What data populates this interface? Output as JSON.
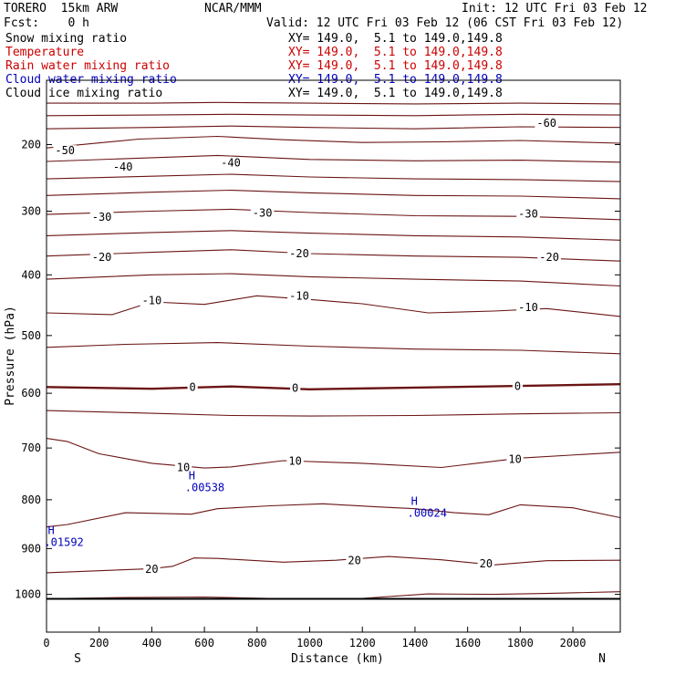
{
  "header": {
    "model": "TORERO  15km ARW",
    "org": "NCAR/MMM",
    "init": "Init: 12 UTC Fri 03 Feb 12",
    "fcst": "Fcst:    0 h",
    "valid": "Valid: 12 UTC Fri 03 Feb 12 (06 CST Fri 03 Feb 12)"
  },
  "fields": [
    {
      "name": "Snow mixing ratio",
      "xy": "XY= 149.0,  5.1 to 149.0,149.8",
      "color": "#000000"
    },
    {
      "name": "Temperature",
      "xy": "XY= 149.0,  5.1 to 149.0,149.8",
      "color": "#cc0000"
    },
    {
      "name": "Rain water mixing ratio",
      "xy": "XY= 149.0,  5.1 to 149.0,149.8",
      "color": "#cc0000"
    },
    {
      "name": "Cloud water mixing ratio",
      "xy": "XY= 149.0,  5.1 to 149.0,149.8",
      "color": "#0000bb"
    },
    {
      "name": "Cloud ice mixing ratio",
      "xy": "XY= 149.0,  5.1 to 149.0,149.8",
      "color": "#000000"
    }
  ],
  "chart_data": {
    "type": "line",
    "xlabel": "Distance (km)",
    "ylabel": "Pressure (hPa)",
    "xlim": [
      0,
      2180
    ],
    "ylim": [
      1050,
      130
    ],
    "y_scale": "pressure",
    "xticks": [
      0,
      200,
      400,
      600,
      800,
      1000,
      1200,
      1400,
      1600,
      1800,
      2000
    ],
    "yticks": [
      200,
      300,
      400,
      500,
      600,
      700,
      800,
      900,
      1000
    ],
    "left_end": "S",
    "right_end": "N",
    "contour_color": "#6b1414",
    "isotherms": [
      {
        "x": [
          0,
          400,
          650,
          1000,
          1400,
          1800,
          2180
        ],
        "p": [
          140,
          140,
          139,
          140,
          141,
          140,
          141
        ]
      },
      {
        "x": [
          0,
          400,
          700,
          1000,
          1400,
          1800,
          2180
        ],
        "p": [
          158,
          157,
          156,
          157,
          158,
          156,
          157
        ]
      },
      {
        "x": [
          0,
          400,
          700,
          1000,
          1400,
          1800,
          2180
        ],
        "p": [
          177,
          175,
          173,
          175,
          177,
          174,
          175
        ]
      },
      {
        "x": [
          0,
          350,
          650,
          900,
          1200,
          1500,
          1800,
          2180
        ],
        "p": [
          205,
          192,
          188,
          193,
          197,
          196,
          194,
          198
        ]
      },
      {
        "x": [
          0,
          350,
          650,
          1000,
          1400,
          1800,
          2180
        ],
        "p": [
          225,
          220,
          216,
          222,
          224,
          223,
          226
        ]
      },
      {
        "x": [
          0,
          400,
          700,
          1000,
          1400,
          1800,
          2180
        ],
        "p": [
          251,
          247,
          244,
          248,
          251,
          252,
          255
        ]
      },
      {
        "x": [
          0,
          400,
          700,
          1000,
          1400,
          1800,
          2180
        ],
        "p": [
          276,
          271,
          268,
          272,
          276,
          277,
          281
        ]
      },
      {
        "x": [
          0,
          400,
          700,
          1000,
          1400,
          1800,
          2180
        ],
        "p": [
          305,
          300,
          297,
          302,
          307,
          308,
          313
        ]
      },
      {
        "x": [
          0,
          400,
          700,
          1000,
          1400,
          1800,
          2180
        ],
        "p": [
          338,
          333,
          330,
          334,
          338,
          340,
          345
        ]
      },
      {
        "x": [
          0,
          400,
          700,
          1000,
          1400,
          1800,
          2180
        ],
        "p": [
          370,
          364,
          360,
          366,
          370,
          372,
          378
        ]
      },
      {
        "x": [
          0,
          400,
          700,
          1000,
          1400,
          1800,
          2180
        ],
        "p": [
          407,
          400,
          398,
          403,
          407,
          410,
          418
        ]
      },
      {
        "x": [
          0,
          250,
          400,
          600,
          800,
          1000,
          1200,
          1450,
          1700,
          1900,
          2180
        ],
        "p": [
          462,
          465,
          444,
          448,
          434,
          440,
          447,
          462,
          459,
          455,
          468
        ]
      },
      {
        "x": [
          0,
          300,
          650,
          1000,
          1400,
          1800,
          2180
        ],
        "p": [
          520,
          515,
          512,
          518,
          523,
          525,
          531
        ]
      },
      {
        "x": [
          0,
          400,
          700,
          1000,
          1400,
          1800,
          2180
        ],
        "p": [
          589,
          592,
          588,
          593,
          590,
          587,
          584
        ],
        "label": "0",
        "bold": true
      },
      {
        "x": [
          0,
          400,
          700,
          1000,
          1400,
          1800,
          2180
        ],
        "p": [
          631,
          636,
          640,
          641,
          640,
          637,
          635
        ]
      },
      {
        "x": [
          0,
          80,
          200,
          400,
          600,
          700,
          900,
          1200,
          1500,
          1800,
          2180
        ],
        "p": [
          682,
          688,
          711,
          729,
          738,
          736,
          724,
          729,
          737,
          719,
          708
        ]
      },
      {
        "x": [
          0,
          80,
          300,
          550,
          650,
          850,
          1050,
          1250,
          1400,
          1550,
          1680,
          1800,
          2000,
          2180
        ],
        "p": [
          855,
          850,
          826,
          829,
          818,
          812,
          808,
          814,
          818,
          826,
          830,
          810,
          816,
          836
        ]
      },
      {
        "x": [
          0,
          400,
          480,
          560,
          650,
          900,
          1100,
          1300,
          1500,
          1700,
          1900,
          2180
        ],
        "p": [
          952,
          943,
          938,
          920,
          921,
          929,
          925,
          917,
          924,
          935,
          926,
          925
        ]
      },
      {
        "x": [
          0,
          300,
          600,
          900,
          1200,
          1450,
          1700,
          1900,
          2180
        ],
        "p": [
          1010,
          1007,
          1006,
          1010,
          1009,
          999,
          1000,
          998,
          994
        ]
      }
    ],
    "isotherm_labels": [
      {
        "text": "-60",
        "x": 1900,
        "p": 169
      },
      {
        "text": "-50",
        "x": 70,
        "p": 209
      },
      {
        "text": "-40",
        "x": 290,
        "p": 233
      },
      {
        "text": "-40",
        "x": 700,
        "p": 227
      },
      {
        "text": "-30",
        "x": 210,
        "p": 309
      },
      {
        "text": "-30",
        "x": 820,
        "p": 303
      },
      {
        "text": "-30",
        "x": 1830,
        "p": 304
      },
      {
        "text": "-20",
        "x": 210,
        "p": 372
      },
      {
        "text": "-20",
        "x": 960,
        "p": 366
      },
      {
        "text": "-20",
        "x": 1910,
        "p": 372
      },
      {
        "text": "-10",
        "x": 400,
        "p": 442
      },
      {
        "text": "-10",
        "x": 960,
        "p": 434
      },
      {
        "text": "-10",
        "x": 1830,
        "p": 453
      },
      {
        "text": "0",
        "x": 555,
        "p": 589
      },
      {
        "text": "0",
        "x": 945,
        "p": 591
      },
      {
        "text": "0",
        "x": 1790,
        "p": 588
      },
      {
        "text": "10",
        "x": 520,
        "p": 737
      },
      {
        "text": "10",
        "x": 945,
        "p": 725
      },
      {
        "text": "10",
        "x": 1780,
        "p": 721
      },
      {
        "text": "20",
        "x": 400,
        "p": 944
      },
      {
        "text": "20",
        "x": 1170,
        "p": 926
      },
      {
        "text": "20",
        "x": 1670,
        "p": 932
      }
    ],
    "maxima": [
      {
        "label": "H",
        "value": ".00538",
        "x": 540,
        "p": 760
      },
      {
        "label": "H",
        "value": ".00024",
        "x": 1385,
        "p": 810
      },
      {
        "label": "H",
        "value": ".01592",
        "x": 5,
        "p": 870
      }
    ],
    "surface": {
      "x": [
        0,
        2180
      ],
      "p": [
        1010,
        1010
      ]
    }
  }
}
